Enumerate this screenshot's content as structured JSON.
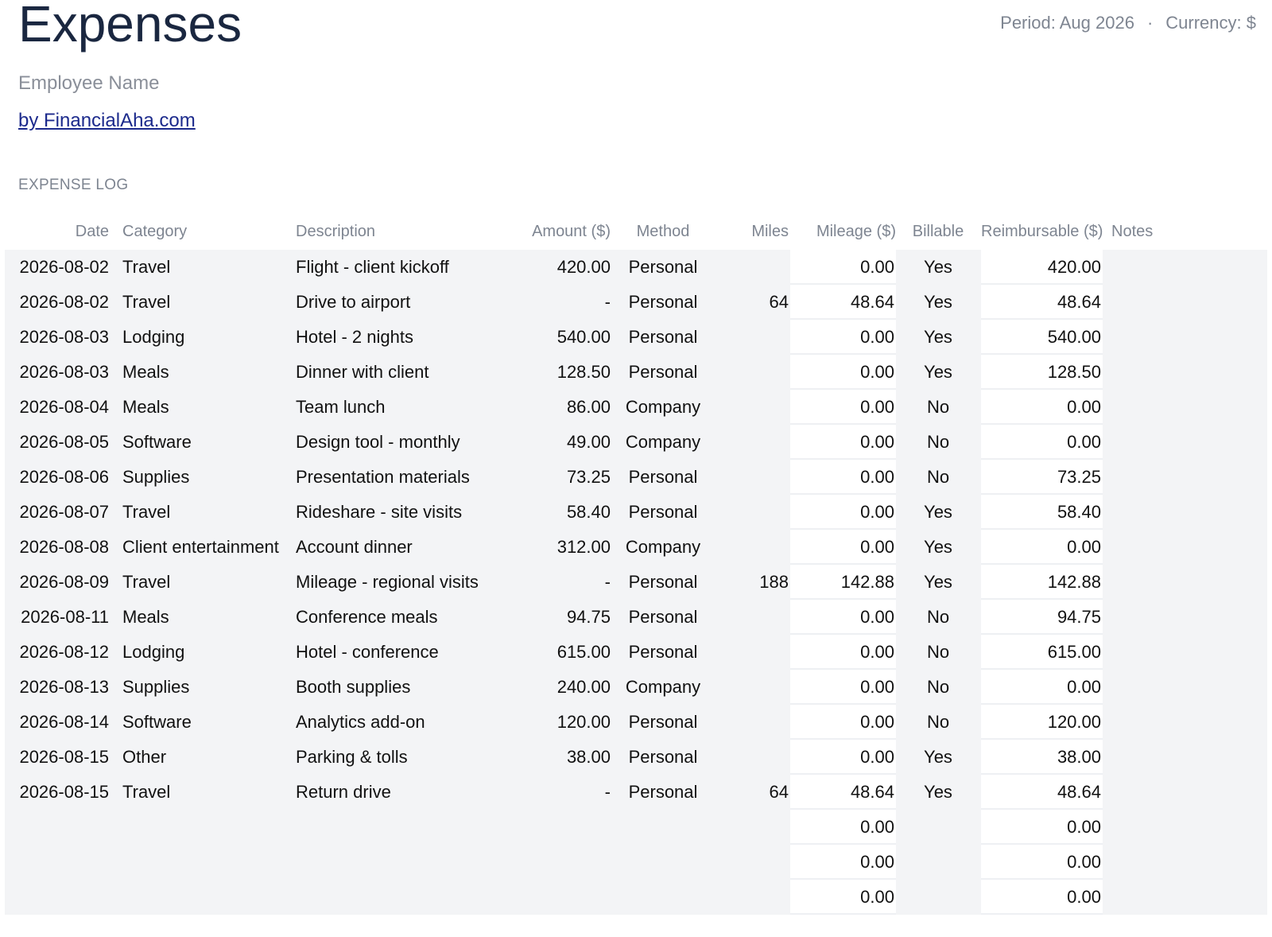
{
  "header": {
    "title": "Expenses",
    "period": "Period: Aug 2026",
    "separator": "·",
    "currency": "Currency: $",
    "employee_placeholder": "Employee Name",
    "credit_link": "by FinancialAha.com"
  },
  "section": {
    "label": "EXPENSE LOG"
  },
  "table": {
    "columns": {
      "date": "Date",
      "category": "Category",
      "description": "Description",
      "amount": "Amount ($)",
      "method": "Method",
      "miles": "Miles",
      "mileage": "Mileage ($)",
      "billable": "Billable",
      "reimbursable": "Reimbursable ($)",
      "notes": "Notes"
    },
    "rows": [
      {
        "date": "2026-08-02",
        "category": "Travel",
        "description": "Flight - client kickoff",
        "amount": "420.00",
        "method": "Personal",
        "miles": "",
        "mileage": "0.00",
        "billable": "Yes",
        "reimbursable": "420.00",
        "notes": ""
      },
      {
        "date": "2026-08-02",
        "category": "Travel",
        "description": "Drive to airport",
        "amount": "-",
        "method": "Personal",
        "miles": "64",
        "mileage": "48.64",
        "billable": "Yes",
        "reimbursable": "48.64",
        "notes": ""
      },
      {
        "date": "2026-08-03",
        "category": "Lodging",
        "description": "Hotel - 2 nights",
        "amount": "540.00",
        "method": "Personal",
        "miles": "",
        "mileage": "0.00",
        "billable": "Yes",
        "reimbursable": "540.00",
        "notes": ""
      },
      {
        "date": "2026-08-03",
        "category": "Meals",
        "description": "Dinner with client",
        "amount": "128.50",
        "method": "Personal",
        "miles": "",
        "mileage": "0.00",
        "billable": "Yes",
        "reimbursable": "128.50",
        "notes": ""
      },
      {
        "date": "2026-08-04",
        "category": "Meals",
        "description": "Team lunch",
        "amount": "86.00",
        "method": "Company",
        "miles": "",
        "mileage": "0.00",
        "billable": "No",
        "reimbursable": "0.00",
        "notes": ""
      },
      {
        "date": "2026-08-05",
        "category": "Software",
        "description": "Design tool - monthly",
        "amount": "49.00",
        "method": "Company",
        "miles": "",
        "mileage": "0.00",
        "billable": "No",
        "reimbursable": "0.00",
        "notes": ""
      },
      {
        "date": "2026-08-06",
        "category": "Supplies",
        "description": "Presentation materials",
        "amount": "73.25",
        "method": "Personal",
        "miles": "",
        "mileage": "0.00",
        "billable": "No",
        "reimbursable": "73.25",
        "notes": ""
      },
      {
        "date": "2026-08-07",
        "category": "Travel",
        "description": "Rideshare - site visits",
        "amount": "58.40",
        "method": "Personal",
        "miles": "",
        "mileage": "0.00",
        "billable": "Yes",
        "reimbursable": "58.40",
        "notes": ""
      },
      {
        "date": "2026-08-08",
        "category": "Client entertainment",
        "description": "Account dinner",
        "amount": "312.00",
        "method": "Company",
        "miles": "",
        "mileage": "0.00",
        "billable": "Yes",
        "reimbursable": "0.00",
        "notes": ""
      },
      {
        "date": "2026-08-09",
        "category": "Travel",
        "description": "Mileage - regional visits",
        "amount": "-",
        "method": "Personal",
        "miles": "188",
        "mileage": "142.88",
        "billable": "Yes",
        "reimbursable": "142.88",
        "notes": ""
      },
      {
        "date": "2026-08-11",
        "category": "Meals",
        "description": "Conference meals",
        "amount": "94.75",
        "method": "Personal",
        "miles": "",
        "mileage": "0.00",
        "billable": "No",
        "reimbursable": "94.75",
        "notes": ""
      },
      {
        "date": "2026-08-12",
        "category": "Lodging",
        "description": "Hotel - conference",
        "amount": "615.00",
        "method": "Personal",
        "miles": "",
        "mileage": "0.00",
        "billable": "No",
        "reimbursable": "615.00",
        "notes": ""
      },
      {
        "date": "2026-08-13",
        "category": "Supplies",
        "description": "Booth supplies",
        "amount": "240.00",
        "method": "Company",
        "miles": "",
        "mileage": "0.00",
        "billable": "No",
        "reimbursable": "0.00",
        "notes": ""
      },
      {
        "date": "2026-08-14",
        "category": "Software",
        "description": "Analytics add-on",
        "amount": "120.00",
        "method": "Personal",
        "miles": "",
        "mileage": "0.00",
        "billable": "No",
        "reimbursable": "120.00",
        "notes": ""
      },
      {
        "date": "2026-08-15",
        "category": "Other",
        "description": "Parking & tolls",
        "amount": "38.00",
        "method": "Personal",
        "miles": "",
        "mileage": "0.00",
        "billable": "Yes",
        "reimbursable": "38.00",
        "notes": ""
      },
      {
        "date": "2026-08-15",
        "category": "Travel",
        "description": "Return drive",
        "amount": "-",
        "method": "Personal",
        "miles": "64",
        "mileage": "48.64",
        "billable": "Yes",
        "reimbursable": "48.64",
        "notes": ""
      },
      {
        "date": "",
        "category": "",
        "description": "",
        "amount": "",
        "method": "",
        "miles": "",
        "mileage": "0.00",
        "billable": "",
        "reimbursable": "0.00",
        "notes": ""
      },
      {
        "date": "",
        "category": "",
        "description": "",
        "amount": "",
        "method": "",
        "miles": "",
        "mileage": "0.00",
        "billable": "",
        "reimbursable": "0.00",
        "notes": ""
      },
      {
        "date": "",
        "category": "",
        "description": "",
        "amount": "",
        "method": "",
        "miles": "",
        "mileage": "0.00",
        "billable": "",
        "reimbursable": "0.00",
        "notes": ""
      }
    ]
  },
  "colors": {
    "title": "#1a2740",
    "muted": "#7e8591",
    "link": "#1c2a8c",
    "row_background": "#f3f4f6",
    "calculated_cell_background": "#ffffff"
  }
}
